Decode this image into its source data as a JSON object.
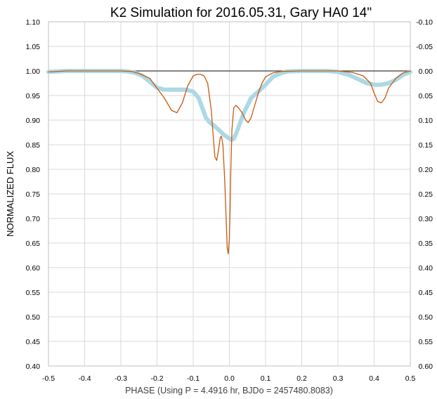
{
  "chart_data": {
    "type": "line",
    "title": "K2 Simulation for 2016.05.31, Gary HA0 14\"",
    "xlabel": "PHASE (Using P = 4.4916 hr, BJDo = 2457480.8083)",
    "ylabel": "NORMALIZED FLUX",
    "xlim": [
      -0.5,
      0.5
    ],
    "ylim": [
      0.4,
      1.1
    ],
    "y2lim": [
      -0.1,
      0.6
    ],
    "y2_inverted": true,
    "grid": true,
    "legend": "none",
    "x_ticks": [
      "-0.5",
      "-0.4",
      "-0.3",
      "-0.2",
      "-0.1",
      "0.0",
      "0.1",
      "0.2",
      "0.3",
      "0.4",
      "0.5"
    ],
    "y_ticks": [
      "1.10",
      "1.05",
      "1.00",
      "0.95",
      "0.90",
      "0.85",
      "0.80",
      "0.75",
      "0.70",
      "0.65",
      "0.60",
      "0.55",
      "0.50",
      "0.45",
      "0.40"
    ],
    "y2_ticks": [
      "-0.10",
      "-0.05",
      "0.00",
      "0.05",
      "0.10",
      "0.15",
      "0.20",
      "0.25",
      "0.30",
      "0.35",
      "0.40",
      "0.45",
      "0.50",
      "0.55",
      "0.60"
    ],
    "reference_line": {
      "y": 1.0,
      "color": "#595959"
    },
    "series": [
      {
        "color": "#add8e6",
        "style": "thick",
        "points": [
          [
            -0.5,
            0.998
          ],
          [
            -0.45,
            1.0
          ],
          [
            -0.4,
            1.0
          ],
          [
            -0.3,
            1.0
          ],
          [
            -0.28,
            0.999
          ],
          [
            -0.26,
            0.996
          ],
          [
            -0.24,
            0.99
          ],
          [
            -0.22,
            0.978
          ],
          [
            -0.2,
            0.966
          ],
          [
            -0.18,
            0.962
          ],
          [
            -0.15,
            0.962
          ],
          [
            -0.12,
            0.962
          ],
          [
            -0.1,
            0.958
          ],
          [
            -0.085,
            0.945
          ],
          [
            -0.075,
            0.925
          ],
          [
            -0.065,
            0.905
          ],
          [
            -0.055,
            0.896
          ],
          [
            -0.045,
            0.89
          ],
          [
            -0.035,
            0.884
          ],
          [
            -0.025,
            0.877
          ],
          [
            -0.015,
            0.87
          ],
          [
            -0.005,
            0.865
          ],
          [
            0.005,
            0.86
          ],
          [
            0.012,
            0.862
          ],
          [
            0.02,
            0.875
          ],
          [
            0.03,
            0.895
          ],
          [
            0.04,
            0.915
          ],
          [
            0.05,
            0.93
          ],
          [
            0.06,
            0.945
          ],
          [
            0.08,
            0.958
          ],
          [
            0.1,
            0.972
          ],
          [
            0.12,
            0.988
          ],
          [
            0.14,
            0.995
          ],
          [
            0.16,
            0.999
          ],
          [
            0.2,
            1.0
          ],
          [
            0.27,
            1.0
          ],
          [
            0.3,
            0.998
          ],
          [
            0.33,
            0.992
          ],
          [
            0.36,
            0.982
          ],
          [
            0.38,
            0.975
          ],
          [
            0.4,
            0.972
          ],
          [
            0.42,
            0.972
          ],
          [
            0.44,
            0.975
          ],
          [
            0.46,
            0.982
          ],
          [
            0.48,
            0.992
          ],
          [
            0.5,
            0.998
          ]
        ]
      },
      {
        "color": "#c55a11",
        "style": "thin",
        "points": [
          [
            -0.5,
            0.998
          ],
          [
            -0.45,
            1.0
          ],
          [
            -0.4,
            1.0
          ],
          [
            -0.3,
            1.0
          ],
          [
            -0.27,
            0.999
          ],
          [
            -0.25,
            0.995
          ],
          [
            -0.22,
            0.985
          ],
          [
            -0.2,
            0.965
          ],
          [
            -0.18,
            0.945
          ],
          [
            -0.16,
            0.92
          ],
          [
            -0.145,
            0.915
          ],
          [
            -0.13,
            0.935
          ],
          [
            -0.115,
            0.97
          ],
          [
            -0.1,
            0.99
          ],
          [
            -0.09,
            0.993
          ],
          [
            -0.08,
            0.993
          ],
          [
            -0.07,
            0.99
          ],
          [
            -0.06,
            0.975
          ],
          [
            -0.05,
            0.92
          ],
          [
            -0.045,
            0.87
          ],
          [
            -0.04,
            0.825
          ],
          [
            -0.035,
            0.818
          ],
          [
            -0.03,
            0.84
          ],
          [
            -0.025,
            0.865
          ],
          [
            -0.022,
            0.867
          ],
          [
            -0.018,
            0.85
          ],
          [
            -0.013,
            0.78
          ],
          [
            -0.009,
            0.7
          ],
          [
            -0.006,
            0.64
          ],
          [
            -0.003,
            0.628
          ],
          [
            0.0,
            0.66
          ],
          [
            0.002,
            0.72
          ],
          [
            0.004,
            0.8
          ],
          [
            0.007,
            0.88
          ],
          [
            0.012,
            0.925
          ],
          [
            0.018,
            0.93
          ],
          [
            0.025,
            0.925
          ],
          [
            0.035,
            0.915
          ],
          [
            0.045,
            0.9
          ],
          [
            0.052,
            0.895
          ],
          [
            0.06,
            0.905
          ],
          [
            0.07,
            0.93
          ],
          [
            0.08,
            0.955
          ],
          [
            0.09,
            0.975
          ],
          [
            0.1,
            0.988
          ],
          [
            0.12,
            0.996
          ],
          [
            0.14,
            0.999
          ],
          [
            0.2,
            1.0
          ],
          [
            0.3,
            1.0
          ],
          [
            0.34,
            0.997
          ],
          [
            0.37,
            0.99
          ],
          [
            0.39,
            0.975
          ],
          [
            0.4,
            0.955
          ],
          [
            0.41,
            0.938
          ],
          [
            0.42,
            0.935
          ],
          [
            0.43,
            0.945
          ],
          [
            0.44,
            0.965
          ],
          [
            0.46,
            0.985
          ],
          [
            0.48,
            0.996
          ],
          [
            0.5,
            1.0
          ]
        ]
      }
    ]
  }
}
